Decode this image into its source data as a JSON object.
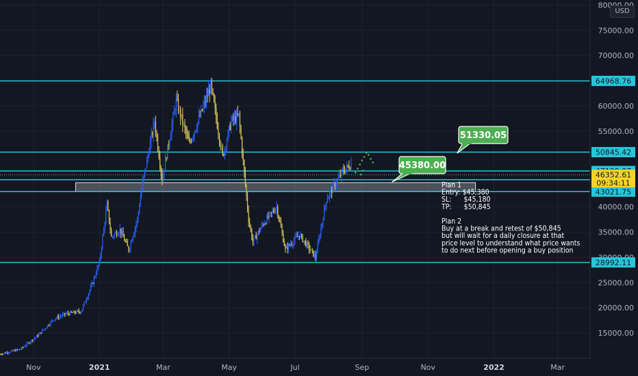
{
  "currency": "USD",
  "colors": {
    "background": "#131722",
    "level_line": "#26c6da",
    "up_candle": "#2962ff",
    "down_candle": "#e0cd5e",
    "callout": "#4caf50",
    "current_price_bg": "#f5d327",
    "zone_fill": "#c9cdd6"
  },
  "chart_data": {
    "type": "candlestick",
    "symbol_currency": "USD",
    "y_axis": {
      "range": [
        10000,
        81000
      ],
      "ticks": [
        15000,
        20000,
        25000,
        30000,
        35000,
        40000,
        55000,
        60000,
        65000,
        70000,
        75000,
        80000
      ],
      "tick_labels": [
        "15000.00",
        "20000.00",
        "25000.00",
        "30000.00",
        "35000.00",
        "40000.00",
        "55000.00",
        "60000.00",
        "65000.00",
        "70000.00",
        "75000.00",
        "80000.00"
      ]
    },
    "x_axis": {
      "range": [
        "2020-10-01",
        "2022-03-31"
      ],
      "ticks": [
        "2020-11-01",
        "2021-01-01",
        "2021-03-01",
        "2021-05-01",
        "2021-07-01",
        "2021-09-01",
        "2021-11-01",
        "2022-01-01",
        "2022-03-01"
      ],
      "tick_labels": [
        "Nov",
        "2021",
        "Mar",
        "May",
        "Jul",
        "Sep",
        "Nov",
        "2022",
        "Mar"
      ]
    },
    "horizontal_levels": [
      64968.76,
      50845.42,
      47109.07,
      45384.73,
      43021.75,
      28992.11
    ],
    "horizontal_level_labels": [
      "64968.76",
      "50845.42",
      "47109.07",
      "45384.73",
      "43021.75",
      "28992.11"
    ],
    "dotted_levels": [
      46352.61,
      45380
    ],
    "current_price": 46352.61,
    "current_price_label": "46352.61",
    "countdown": "09:34:11",
    "zone": {
      "low": 43021.75,
      "high": 44800,
      "x_start": "2020-12-10",
      "x_end": "2021-12-15"
    },
    "price_path": [
      [
        "2020-10-01",
        10800
      ],
      [
        "2020-10-20",
        11800
      ],
      [
        "2020-11-05",
        14500
      ],
      [
        "2020-11-20",
        17800
      ],
      [
        "2020-12-01",
        18800
      ],
      [
        "2020-12-15",
        19300
      ],
      [
        "2020-12-25",
        24500
      ],
      [
        "2021-01-01",
        29000
      ],
      [
        "2021-01-08",
        40500
      ],
      [
        "2021-01-12",
        34000
      ],
      [
        "2021-01-20",
        35500
      ],
      [
        "2021-01-28",
        31500
      ],
      [
        "2021-02-05",
        37500
      ],
      [
        "2021-02-10",
        44800
      ],
      [
        "2021-02-21",
        57000
      ],
      [
        "2021-02-28",
        45500
      ],
      [
        "2021-03-13",
        61000
      ],
      [
        "2021-03-25",
        52500
      ],
      [
        "2021-04-05",
        58500
      ],
      [
        "2021-04-14",
        64000
      ],
      [
        "2021-04-25",
        50000
      ],
      [
        "2021-05-03",
        57000
      ],
      [
        "2021-05-10",
        58000
      ],
      [
        "2021-05-19",
        37500
      ],
      [
        "2021-05-23",
        33000
      ],
      [
        "2021-06-01",
        36500
      ],
      [
        "2021-06-14",
        40000
      ],
      [
        "2021-06-22",
        31500
      ],
      [
        "2021-07-05",
        34500
      ],
      [
        "2021-07-20",
        30000
      ],
      [
        "2021-07-30",
        41500
      ],
      [
        "2021-08-07",
        44500
      ],
      [
        "2021-08-14",
        47000
      ],
      [
        "2021-08-22",
        48500
      ]
    ],
    "projection_points": [
      [
        "2021-08-26",
        46800
      ],
      [
        "2021-08-28",
        47600
      ],
      [
        "2021-08-30",
        48400
      ],
      [
        "2021-09-01",
        49200
      ],
      [
        "2021-09-03",
        49900
      ],
      [
        "2021-09-05",
        50700
      ],
      [
        "2021-09-07",
        50300
      ],
      [
        "2021-09-09",
        49500
      ],
      [
        "2021-09-11",
        48800
      ],
      [
        "2021-09-02",
        47200
      ],
      [
        "2021-08-31",
        46400
      ]
    ],
    "callouts": [
      {
        "text": "51330.05",
        "anchor": [
          "2021-11-01",
          51330.05
        ]
      },
      {
        "text": "45380.00",
        "anchor": [
          "2021-09-10",
          45380
        ]
      }
    ],
    "notes": [
      "Plan 1",
      "Entry: $45,380",
      "SL:      $45,180",
      "TP:      $50,845",
      "",
      "Plan 2",
      "Buy at a break and retest of $50,845",
      "but will wait for a daily closure at that",
      "price level to understand what price wants",
      "to do next before opening a buy position"
    ]
  }
}
